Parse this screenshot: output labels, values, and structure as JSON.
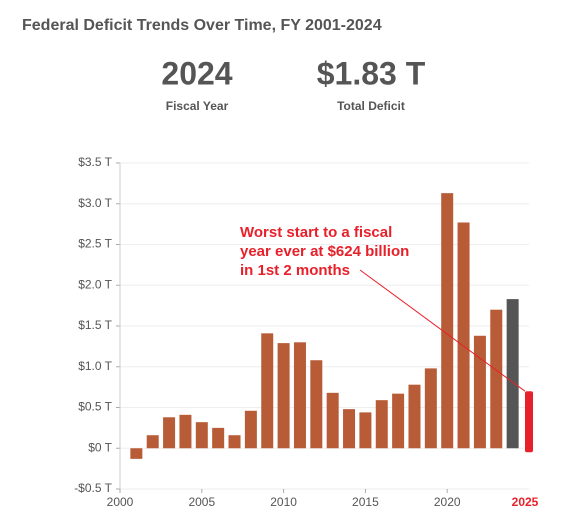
{
  "chart_data": {
    "type": "bar",
    "title": "Federal Deficit Trends Over Time, FY 2001-2024",
    "stats": [
      {
        "value": "2024",
        "label": "Fiscal Year"
      },
      {
        "value": "$1.83 T",
        "label": "Total Deficit"
      }
    ],
    "x": [
      2001,
      2002,
      2003,
      2004,
      2005,
      2006,
      2007,
      2008,
      2009,
      2010,
      2011,
      2012,
      2013,
      2014,
      2015,
      2016,
      2017,
      2018,
      2019,
      2020,
      2021,
      2022,
      2023,
      2024
    ],
    "values": [
      -0.13,
      0.16,
      0.38,
      0.41,
      0.32,
      0.25,
      0.16,
      0.46,
      1.41,
      1.29,
      1.3,
      1.08,
      0.68,
      0.48,
      0.44,
      0.59,
      0.67,
      0.78,
      0.98,
      3.13,
      2.77,
      1.38,
      1.7,
      1.83
    ],
    "color": "#b85c38",
    "highlight_color": "#555555",
    "highlight_x": 2024,
    "xlim": [
      2000,
      2025
    ],
    "xticks": [
      2000,
      2005,
      2010,
      2015,
      2020
    ],
    "ylim": [
      -0.5,
      3.5
    ],
    "yticks": [
      {
        "value": -0.5,
        "label": "-$0.5 T"
      },
      {
        "value": 0,
        "label": "$0 T"
      },
      {
        "value": 0.5,
        "label": "$0.5 T"
      },
      {
        "value": 1,
        "label": "$1.0 T"
      },
      {
        "value": 1.5,
        "label": "$1.5 T"
      },
      {
        "value": 2,
        "label": "$2.0 T"
      },
      {
        "value": 2.5,
        "label": "$2.5 T"
      },
      {
        "value": 3,
        "label": "$3.0 T"
      },
      {
        "value": 3.5,
        "label": "$3.5 T"
      }
    ],
    "annotation": {
      "lines": [
        "Worst start to a fiscal",
        "year ever at $624 billion",
        "in 1st 2 months"
      ],
      "x": 2025,
      "value": 0.7,
      "color": "#e8202a"
    }
  }
}
